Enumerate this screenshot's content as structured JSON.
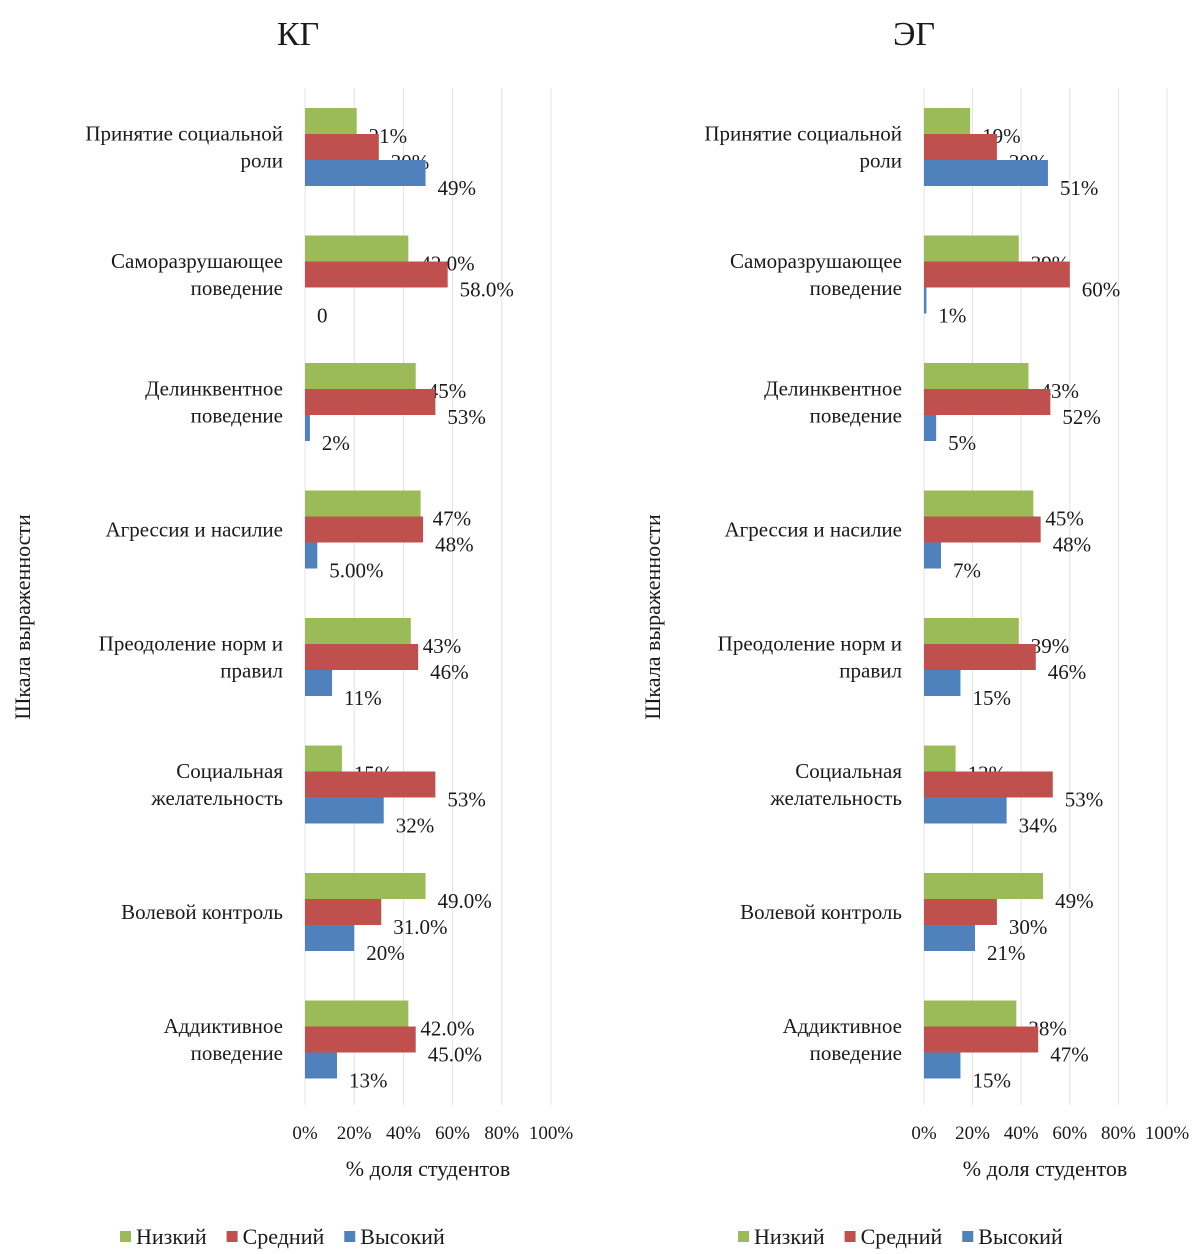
{
  "chart_data": [
    {
      "type": "bar",
      "orientation": "horizontal",
      "title": "КГ",
      "xlabel": "% доля студентов",
      "ylabel": "Шкала выраженности",
      "xlim": [
        0,
        100
      ],
      "xticks": [
        "0%",
        "20%",
        "40%",
        "60%",
        "80%",
        "100%"
      ],
      "grid": true,
      "legend_position": "bottom",
      "categories": [
        [
          "Принятие социальной",
          "роли"
        ],
        [
          "Саморазрушающее",
          "поведение"
        ],
        [
          "Делинквентное",
          "поведение"
        ],
        [
          "Агрессия и насилие"
        ],
        [
          "Преодоление норм и",
          "правил"
        ],
        [
          "Социальная",
          "желательность"
        ],
        [
          "Волевой контроль"
        ],
        [
          "Аддиктивное",
          "поведение"
        ]
      ],
      "series": [
        {
          "name": "Низкий",
          "color": "#9bbb59",
          "values": [
            21,
            42,
            45,
            47,
            43,
            15,
            49,
            42
          ],
          "labels": [
            "21%",
            "42.0%",
            "45%",
            "47%",
            "43%",
            "15%",
            "49.0%",
            "42.0%"
          ]
        },
        {
          "name": "Средний",
          "color": "#c0504d",
          "values": [
            30,
            58,
            53,
            48,
            46,
            53,
            31,
            45
          ],
          "labels": [
            "30%",
            "58.0%",
            "53%",
            "48%",
            "46%",
            "53%",
            "31.0%",
            "45.0%"
          ]
        },
        {
          "name": "Высокий",
          "color": "#4f81bd",
          "values": [
            49,
            0,
            2,
            5,
            11,
            32,
            20,
            13
          ],
          "labels": [
            "49%",
            "0",
            "2%",
            "5.00%",
            "11%",
            "32%",
            "20%",
            "13%"
          ]
        }
      ]
    },
    {
      "type": "bar",
      "orientation": "horizontal",
      "title": "ЭГ",
      "xlabel": "% доля студентов",
      "ylabel": "Шкала выраженности",
      "xlim": [
        0,
        100
      ],
      "xticks": [
        "0%",
        "20%",
        "40%",
        "60%",
        "80%",
        "100%"
      ],
      "grid": true,
      "legend_position": "bottom",
      "categories": [
        [
          "Принятие социальной",
          "роли"
        ],
        [
          "Саморазрушающее",
          "поведение"
        ],
        [
          "Делинквентное",
          "поведение"
        ],
        [
          "Агрессия и насилие"
        ],
        [
          "Преодоление норм и",
          "правил"
        ],
        [
          "Социальная",
          "желательность"
        ],
        [
          "Волевой контроль"
        ],
        [
          "Аддиктивное",
          "поведение"
        ]
      ],
      "series": [
        {
          "name": "Низкий",
          "color": "#9bbb59",
          "values": [
            19,
            39,
            43,
            45,
            39,
            13,
            49,
            38
          ],
          "labels": [
            "19%",
            "39%",
            "43%",
            "45%",
            "39%",
            "13%",
            "49%",
            "38%"
          ]
        },
        {
          "name": "Средний",
          "color": "#c0504d",
          "values": [
            30,
            60,
            52,
            48,
            46,
            53,
            30,
            47
          ],
          "labels": [
            "30%",
            "60%",
            "52%",
            "48%",
            "46%",
            "53%",
            "30%",
            "47%"
          ]
        },
        {
          "name": "Высокий",
          "color": "#4f81bd",
          "values": [
            51,
            1,
            5,
            7,
            15,
            34,
            21,
            15
          ],
          "labels": [
            "51%",
            "1%",
            "5%",
            "7%",
            "15%",
            "34%",
            "21%",
            "15%"
          ]
        }
      ]
    }
  ]
}
